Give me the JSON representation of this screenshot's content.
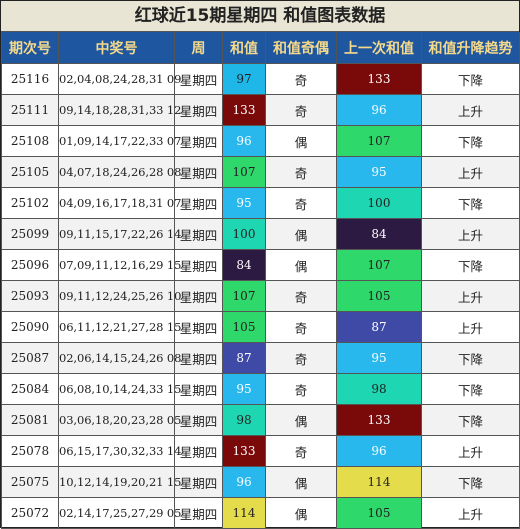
{
  "title": "红球近15期星期四 和值图表数据",
  "headers": [
    "期次号",
    "中奖号",
    "周",
    "和值",
    "和值奇偶",
    "上一次和值",
    "和值升降趋势"
  ],
  "colors": {
    "val_84": "#2d1a42",
    "val_87": "#3f4aa6",
    "val_95": "#29b8ee",
    "val_96": "#29b8ee",
    "val_97": "#1fb6e8",
    "val_98": "#1ed6b2",
    "val_100": "#1ed6b2",
    "val_105": "#2ed86a",
    "val_107": "#2ed86a",
    "val_114": "#e4dc4a",
    "val_133": "#7a0a0a"
  },
  "rows": [
    {
      "period": "25116",
      "numbers": "02,04,08,24,28,31 09",
      "weekday": "星期四",
      "sum": "97",
      "sum_color": "#1fb6e8",
      "sum_text_color": "#222222",
      "parity": "奇",
      "prev_sum": "133",
      "prev_color": "#7a0a0a",
      "prev_text_color": "#ffffff",
      "trend": "下降"
    },
    {
      "period": "25111",
      "numbers": "09,14,18,28,31,33 12",
      "weekday": "星期四",
      "sum": "133",
      "sum_color": "#7a0a0a",
      "sum_text_color": "#ffffff",
      "parity": "奇",
      "prev_sum": "96",
      "prev_color": "#29b8ee",
      "prev_text_color": "#ffffff",
      "trend": "上升"
    },
    {
      "period": "25108",
      "numbers": "01,09,14,17,22,33 07",
      "weekday": "星期四",
      "sum": "96",
      "sum_color": "#29b8ee",
      "sum_text_color": "#ffffff",
      "parity": "偶",
      "prev_sum": "107",
      "prev_color": "#2ed86a",
      "prev_text_color": "#222222",
      "trend": "下降"
    },
    {
      "period": "25105",
      "numbers": "04,07,18,24,26,28 08",
      "weekday": "星期四",
      "sum": "107",
      "sum_color": "#2ed86a",
      "sum_text_color": "#222222",
      "parity": "奇",
      "prev_sum": "95",
      "prev_color": "#29b8ee",
      "prev_text_color": "#ffffff",
      "trend": "上升"
    },
    {
      "period": "25102",
      "numbers": "04,09,16,17,18,31 07",
      "weekday": "星期四",
      "sum": "95",
      "sum_color": "#29b8ee",
      "sum_text_color": "#ffffff",
      "parity": "奇",
      "prev_sum": "100",
      "prev_color": "#1ed6b2",
      "prev_text_color": "#222222",
      "trend": "下降"
    },
    {
      "period": "25099",
      "numbers": "09,11,15,17,22,26 14",
      "weekday": "星期四",
      "sum": "100",
      "sum_color": "#1ed6b2",
      "sum_text_color": "#222222",
      "parity": "偶",
      "prev_sum": "84",
      "prev_color": "#2d1a42",
      "prev_text_color": "#ffffff",
      "trend": "上升"
    },
    {
      "period": "25096",
      "numbers": "07,09,11,12,16,29 15",
      "weekday": "星期四",
      "sum": "84",
      "sum_color": "#2d1a42",
      "sum_text_color": "#ffffff",
      "parity": "偶",
      "prev_sum": "107",
      "prev_color": "#2ed86a",
      "prev_text_color": "#222222",
      "trend": "下降"
    },
    {
      "period": "25093",
      "numbers": "09,11,12,24,25,26 10",
      "weekday": "星期四",
      "sum": "107",
      "sum_color": "#2ed86a",
      "sum_text_color": "#222222",
      "parity": "奇",
      "prev_sum": "105",
      "prev_color": "#2ed86a",
      "prev_text_color": "#222222",
      "trend": "上升"
    },
    {
      "period": "25090",
      "numbers": "06,11,12,21,27,28 15",
      "weekday": "星期四",
      "sum": "105",
      "sum_color": "#2ed86a",
      "sum_text_color": "#222222",
      "parity": "奇",
      "prev_sum": "87",
      "prev_color": "#3f4aa6",
      "prev_text_color": "#ffffff",
      "trend": "上升"
    },
    {
      "period": "25087",
      "numbers": "02,06,14,15,24,26 08",
      "weekday": "星期四",
      "sum": "87",
      "sum_color": "#3f4aa6",
      "sum_text_color": "#ffffff",
      "parity": "奇",
      "prev_sum": "95",
      "prev_color": "#29b8ee",
      "prev_text_color": "#ffffff",
      "trend": "下降"
    },
    {
      "period": "25084",
      "numbers": "06,08,10,14,24,33 15",
      "weekday": "星期四",
      "sum": "95",
      "sum_color": "#29b8ee",
      "sum_text_color": "#ffffff",
      "parity": "奇",
      "prev_sum": "98",
      "prev_color": "#1ed6b2",
      "prev_text_color": "#222222",
      "trend": "下降"
    },
    {
      "period": "25081",
      "numbers": "03,06,18,20,23,28 05",
      "weekday": "星期四",
      "sum": "98",
      "sum_color": "#1ed6b2",
      "sum_text_color": "#222222",
      "parity": "偶",
      "prev_sum": "133",
      "prev_color": "#7a0a0a",
      "prev_text_color": "#ffffff",
      "trend": "下降"
    },
    {
      "period": "25078",
      "numbers": "06,15,17,30,32,33 14",
      "weekday": "星期四",
      "sum": "133",
      "sum_color": "#7a0a0a",
      "sum_text_color": "#ffffff",
      "parity": "奇",
      "prev_sum": "96",
      "prev_color": "#29b8ee",
      "prev_text_color": "#ffffff",
      "trend": "上升"
    },
    {
      "period": "25075",
      "numbers": "10,12,14,19,20,21 15",
      "weekday": "星期四",
      "sum": "96",
      "sum_color": "#29b8ee",
      "sum_text_color": "#ffffff",
      "parity": "偶",
      "prev_sum": "114",
      "prev_color": "#e4dc4a",
      "prev_text_color": "#222222",
      "trend": "下降"
    },
    {
      "period": "25072",
      "numbers": "02,14,17,25,27,29 05",
      "weekday": "星期四",
      "sum": "114",
      "sum_color": "#e4dc4a",
      "sum_text_color": "#222222",
      "parity": "偶",
      "prev_sum": "105",
      "prev_color": "#2ed86a",
      "prev_text_color": "#222222",
      "trend": "上升"
    }
  ]
}
